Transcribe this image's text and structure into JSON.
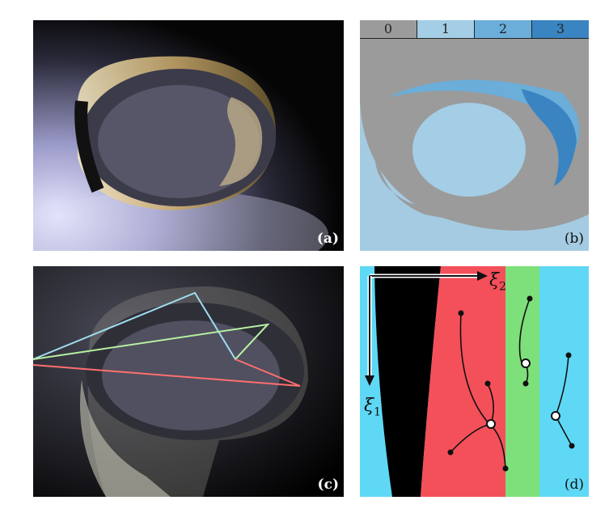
{
  "panels": {
    "a": {
      "tag": "(a)"
    },
    "b": {
      "tag": "(b)",
      "legend": [
        {
          "label": "0",
          "color": "#9b9b9b"
        },
        {
          "label": "1",
          "color": "#a4cde6"
        },
        {
          "label": "2",
          "color": "#6aaed9"
        },
        {
          "label": "3",
          "color": "#3a84c2"
        }
      ]
    },
    "c": {
      "tag": "(c)",
      "path_colors": {
        "blue": "#9fdcf0",
        "green": "#b6f0a0",
        "red": "#ff6f6f"
      }
    },
    "d": {
      "tag": "(d)",
      "xi1": "ξ",
      "xi1_sub": "1",
      "xi2": "ξ",
      "xi2_sub": "2",
      "region_colors": {
        "cyan": "#5fd8f5",
        "black": "#000000",
        "red": "#f4505a",
        "green": "#7ee07a"
      }
    }
  }
}
